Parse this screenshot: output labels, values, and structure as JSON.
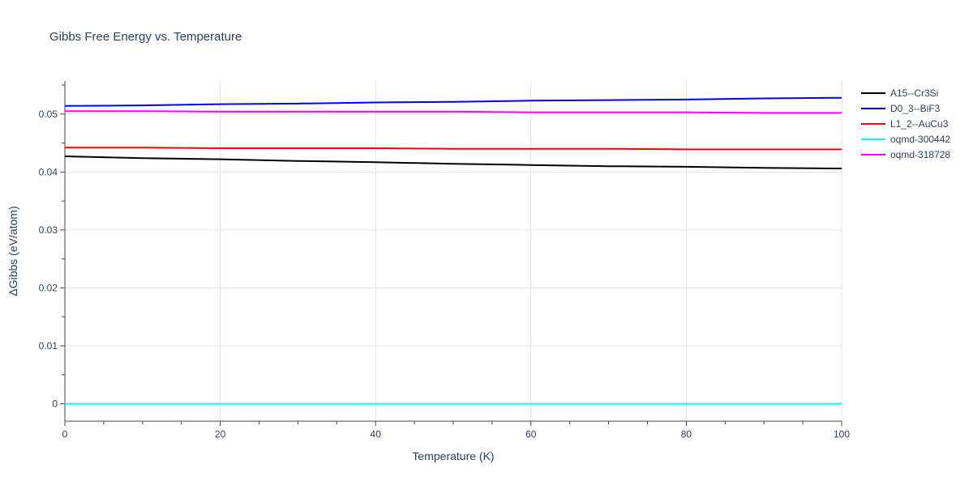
{
  "chart_data": {
    "type": "line",
    "title": "Gibbs Free Energy vs. Temperature",
    "xlabel": "Temperature (K)",
    "ylabel": "ΔGibbs (eV/atom)",
    "xlim": [
      0,
      100
    ],
    "ylim": [
      -0.003,
      0.0557
    ],
    "x_ticks": [
      0,
      20,
      40,
      60,
      80,
      100
    ],
    "y_ticks": [
      0,
      0.01,
      0.02,
      0.03,
      0.04,
      0.05
    ],
    "y_tick_labels": [
      "0",
      "0.01",
      "0.02",
      "0.03",
      "0.04",
      "0.05"
    ],
    "grid": true,
    "legend_position": "right",
    "x": [
      0,
      10,
      20,
      30,
      40,
      50,
      60,
      70,
      80,
      90,
      100
    ],
    "series": [
      {
        "name": "A15--Cr3Si",
        "color": "#000000",
        "values": [
          0.0427,
          0.0424,
          0.0422,
          0.0419,
          0.0417,
          0.0414,
          0.0412,
          0.041,
          0.0409,
          0.0407,
          0.0406
        ]
      },
      {
        "name": "D0_3--BiF3",
        "color": "#0000ff",
        "values": [
          0.0514,
          0.0515,
          0.0517,
          0.0518,
          0.052,
          0.0521,
          0.0523,
          0.0524,
          0.0525,
          0.0527,
          0.0528
        ]
      },
      {
        "name": "L1_2--AuCu3",
        "color": "#ff0000",
        "values": [
          0.0442,
          0.0442,
          0.0441,
          0.0441,
          0.0441,
          0.044,
          0.044,
          0.044,
          0.0439,
          0.0439,
          0.0439
        ]
      },
      {
        "name": "oqmd-300442",
        "color": "#00ffff",
        "values": [
          0,
          0,
          0,
          0,
          0,
          0,
          0,
          0,
          0,
          0,
          0
        ]
      },
      {
        "name": "oqmd-318728",
        "color": "#ff00ff",
        "values": [
          0.0505,
          0.0505,
          0.0504,
          0.0504,
          0.0504,
          0.0504,
          0.0503,
          0.0503,
          0.0503,
          0.0502,
          0.0502
        ]
      }
    ]
  }
}
